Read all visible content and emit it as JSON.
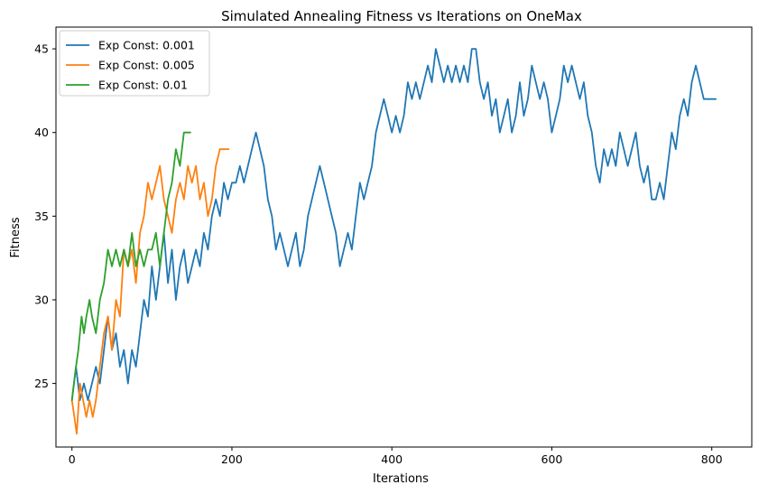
{
  "chart_data": {
    "type": "line",
    "title": "Simulated Annealing Fitness vs Iterations on OneMax",
    "xlabel": "Iterations",
    "ylabel": "Fitness",
    "xlim": [
      -20,
      850
    ],
    "ylim": [
      21.2,
      46.3
    ],
    "xticks": [
      0,
      200,
      400,
      600,
      800
    ],
    "yticks": [
      25,
      30,
      35,
      40,
      45
    ],
    "grid": false,
    "legend_position": "top-left",
    "series": [
      {
        "name": "Exp Const: 0.001",
        "color": "#1f77b4",
        "points": [
          [
            0,
            24
          ],
          [
            5,
            26
          ],
          [
            10,
            24
          ],
          [
            15,
            25
          ],
          [
            20,
            24
          ],
          [
            25,
            25
          ],
          [
            30,
            26
          ],
          [
            35,
            25
          ],
          [
            40,
            27
          ],
          [
            45,
            29
          ],
          [
            50,
            27
          ],
          [
            55,
            28
          ],
          [
            60,
            26
          ],
          [
            65,
            27
          ],
          [
            70,
            25
          ],
          [
            75,
            27
          ],
          [
            80,
            26
          ],
          [
            85,
            28
          ],
          [
            90,
            30
          ],
          [
            95,
            29
          ],
          [
            100,
            32
          ],
          [
            105,
            30
          ],
          [
            110,
            32
          ],
          [
            115,
            34
          ],
          [
            120,
            31
          ],
          [
            125,
            33
          ],
          [
            130,
            30
          ],
          [
            135,
            32
          ],
          [
            140,
            33
          ],
          [
            145,
            31
          ],
          [
            150,
            32
          ],
          [
            155,
            33
          ],
          [
            160,
            32
          ],
          [
            165,
            34
          ],
          [
            170,
            33
          ],
          [
            175,
            35
          ],
          [
            180,
            36
          ],
          [
            185,
            35
          ],
          [
            190,
            37
          ],
          [
            195,
            36
          ],
          [
            200,
            37
          ],
          [
            205,
            37
          ],
          [
            210,
            38
          ],
          [
            215,
            37
          ],
          [
            220,
            38
          ],
          [
            225,
            39
          ],
          [
            230,
            40
          ],
          [
            235,
            39
          ],
          [
            240,
            38
          ],
          [
            245,
            36
          ],
          [
            250,
            35
          ],
          [
            255,
            33
          ],
          [
            260,
            34
          ],
          [
            265,
            33
          ],
          [
            270,
            32
          ],
          [
            275,
            33
          ],
          [
            280,
            34
          ],
          [
            285,
            32
          ],
          [
            290,
            33
          ],
          [
            295,
            35
          ],
          [
            300,
            36
          ],
          [
            305,
            37
          ],
          [
            310,
            38
          ],
          [
            315,
            37
          ],
          [
            320,
            36
          ],
          [
            325,
            35
          ],
          [
            330,
            34
          ],
          [
            335,
            32
          ],
          [
            340,
            33
          ],
          [
            345,
            34
          ],
          [
            350,
            33
          ],
          [
            355,
            35
          ],
          [
            360,
            37
          ],
          [
            365,
            36
          ],
          [
            370,
            37
          ],
          [
            375,
            38
          ],
          [
            380,
            40
          ],
          [
            385,
            41
          ],
          [
            390,
            42
          ],
          [
            395,
            41
          ],
          [
            400,
            40
          ],
          [
            405,
            41
          ],
          [
            410,
            40
          ],
          [
            415,
            41
          ],
          [
            420,
            43
          ],
          [
            425,
            42
          ],
          [
            430,
            43
          ],
          [
            435,
            42
          ],
          [
            440,
            43
          ],
          [
            445,
            44
          ],
          [
            450,
            43
          ],
          [
            455,
            45
          ],
          [
            460,
            44
          ],
          [
            465,
            43
          ],
          [
            470,
            44
          ],
          [
            475,
            43
          ],
          [
            480,
            44
          ],
          [
            485,
            43
          ],
          [
            490,
            44
          ],
          [
            495,
            43
          ],
          [
            500,
            45
          ],
          [
            505,
            45
          ],
          [
            510,
            43
          ],
          [
            515,
            42
          ],
          [
            520,
            43
          ],
          [
            525,
            41
          ],
          [
            530,
            42
          ],
          [
            535,
            40
          ],
          [
            540,
            41
          ],
          [
            545,
            42
          ],
          [
            550,
            40
          ],
          [
            555,
            41
          ],
          [
            560,
            43
          ],
          [
            565,
            41
          ],
          [
            570,
            42
          ],
          [
            575,
            44
          ],
          [
            580,
            43
          ],
          [
            585,
            42
          ],
          [
            590,
            43
          ],
          [
            595,
            42
          ],
          [
            600,
            40
          ],
          [
            605,
            41
          ],
          [
            610,
            42
          ],
          [
            615,
            44
          ],
          [
            620,
            43
          ],
          [
            625,
            44
          ],
          [
            630,
            43
          ],
          [
            635,
            42
          ],
          [
            640,
            43
          ],
          [
            645,
            41
          ],
          [
            650,
            40
          ],
          [
            655,
            38
          ],
          [
            660,
            37
          ],
          [
            665,
            39
          ],
          [
            670,
            38
          ],
          [
            675,
            39
          ],
          [
            680,
            38
          ],
          [
            685,
            40
          ],
          [
            690,
            39
          ],
          [
            695,
            38
          ],
          [
            700,
            39
          ],
          [
            705,
            40
          ],
          [
            710,
            38
          ],
          [
            715,
            37
          ],
          [
            720,
            38
          ],
          [
            725,
            36
          ],
          [
            730,
            36
          ],
          [
            735,
            37
          ],
          [
            740,
            36
          ],
          [
            745,
            38
          ],
          [
            750,
            40
          ],
          [
            755,
            39
          ],
          [
            760,
            41
          ],
          [
            765,
            42
          ],
          [
            770,
            41
          ],
          [
            775,
            43
          ],
          [
            780,
            44
          ],
          [
            785,
            43
          ],
          [
            790,
            42
          ],
          [
            800,
            42
          ],
          [
            805,
            42
          ]
        ]
      },
      {
        "name": "Exp Const: 0.005",
        "color": "#ff7f0e",
        "points": [
          [
            0,
            24
          ],
          [
            3,
            23
          ],
          [
            6,
            22
          ],
          [
            10,
            25
          ],
          [
            14,
            24
          ],
          [
            18,
            23
          ],
          [
            22,
            24
          ],
          [
            26,
            23
          ],
          [
            30,
            24
          ],
          [
            35,
            26
          ],
          [
            40,
            28
          ],
          [
            45,
            29
          ],
          [
            50,
            27
          ],
          [
            55,
            30
          ],
          [
            60,
            29
          ],
          [
            65,
            33
          ],
          [
            70,
            32
          ],
          [
            75,
            33
          ],
          [
            80,
            31
          ],
          [
            85,
            34
          ],
          [
            90,
            35
          ],
          [
            95,
            37
          ],
          [
            100,
            36
          ],
          [
            105,
            37
          ],
          [
            110,
            38
          ],
          [
            115,
            36
          ],
          [
            120,
            35
          ],
          [
            125,
            34
          ],
          [
            130,
            36
          ],
          [
            135,
            37
          ],
          [
            140,
            36
          ],
          [
            145,
            38
          ],
          [
            150,
            37
          ],
          [
            155,
            38
          ],
          [
            160,
            36
          ],
          [
            165,
            37
          ],
          [
            170,
            35
          ],
          [
            175,
            36
          ],
          [
            180,
            38
          ],
          [
            185,
            39
          ],
          [
            190,
            39
          ],
          [
            196,
            39
          ]
        ]
      },
      {
        "name": "Exp Const: 0.01",
        "color": "#2ca02c",
        "points": [
          [
            0,
            24
          ],
          [
            5,
            26
          ],
          [
            8,
            27
          ],
          [
            12,
            29
          ],
          [
            15,
            28
          ],
          [
            18,
            29
          ],
          [
            22,
            30
          ],
          [
            25,
            29
          ],
          [
            30,
            28
          ],
          [
            35,
            30
          ],
          [
            40,
            31
          ],
          [
            45,
            33
          ],
          [
            50,
            32
          ],
          [
            55,
            33
          ],
          [
            60,
            32
          ],
          [
            65,
            33
          ],
          [
            70,
            32
          ],
          [
            75,
            34
          ],
          [
            80,
            32
          ],
          [
            85,
            33
          ],
          [
            90,
            32
          ],
          [
            95,
            33
          ],
          [
            100,
            33
          ],
          [
            105,
            34
          ],
          [
            110,
            32
          ],
          [
            115,
            34
          ],
          [
            120,
            36
          ],
          [
            125,
            37
          ],
          [
            130,
            39
          ],
          [
            135,
            38
          ],
          [
            140,
            40
          ],
          [
            145,
            40
          ],
          [
            148,
            40
          ]
        ]
      }
    ]
  }
}
